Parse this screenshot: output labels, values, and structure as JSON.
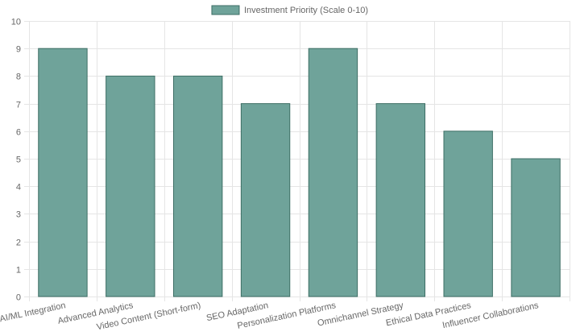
{
  "chart_data": {
    "type": "bar",
    "categories": [
      "AI/ML Integration",
      "Advanced Analytics",
      "Video Content (Short-form)",
      "SEO Adaptation",
      "Personalization Platforms",
      "Omnichannel Strategy",
      "Ethical Data Practices",
      "Influencer Collaborations"
    ],
    "series": [
      {
        "name": "Investment Priority (Scale 0-10)",
        "values": [
          9,
          8,
          8,
          7,
          9,
          7,
          6,
          5
        ]
      }
    ],
    "ylim": [
      0,
      10
    ],
    "yticks": [
      0,
      1,
      2,
      3,
      4,
      5,
      6,
      7,
      8,
      9,
      10
    ],
    "grid": true,
    "legend_position": "top-center",
    "colors": {
      "bar_fill": "#6fa39a",
      "bar_stroke": "#3d6e65",
      "grid": "#e5e5e5",
      "text": "#666666"
    }
  }
}
